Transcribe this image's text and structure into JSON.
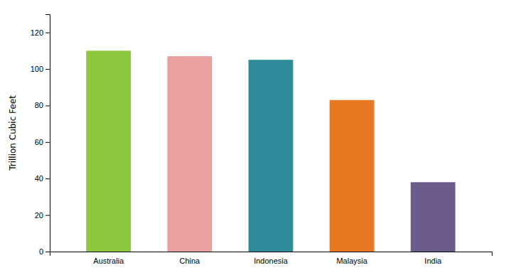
{
  "chart_data": {
    "type": "bar",
    "categories": [
      "Australia",
      "China",
      "Indonesia",
      "Malaysia",
      "India"
    ],
    "values": [
      110,
      107,
      105,
      83,
      38
    ],
    "colors": [
      "#8DC63F",
      "#E8A0A0",
      "#2E8B9A",
      "#E87722",
      "#6B5B8B"
    ],
    "ylabel": "Trillion Cubic Feet",
    "ylim": [
      0,
      130
    ],
    "yticks": [
      0,
      20,
      40,
      60,
      80,
      100,
      120
    ],
    "grid": false
  }
}
